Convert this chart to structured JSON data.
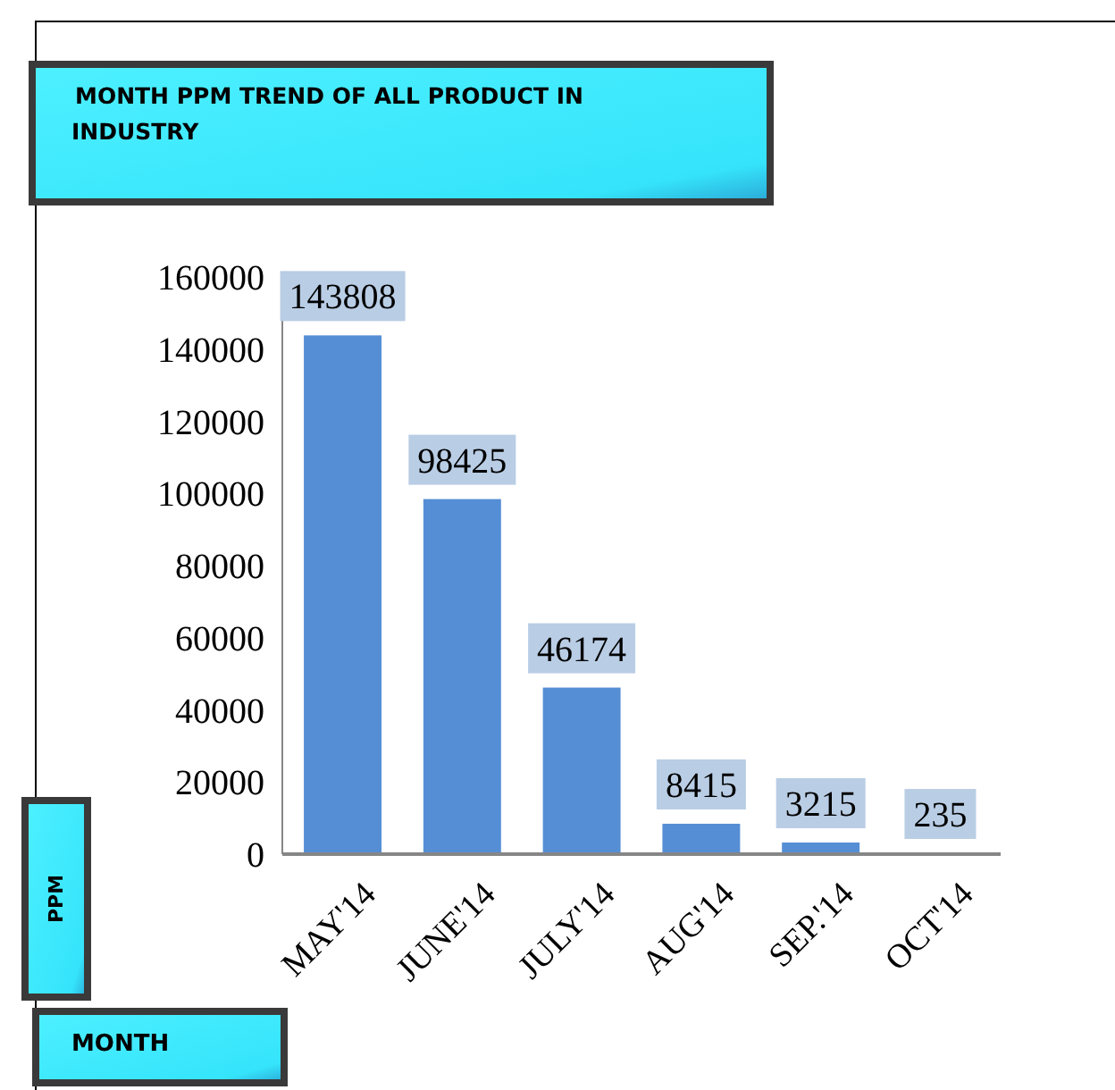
{
  "chart_data": {
    "type": "bar",
    "title": "MONTH PPM TREND OF ALL PRODUCT IN INDUSTRY",
    "xlabel": "MONTH",
    "ylabel": "PPM",
    "categories": [
      "MAY'14",
      "JUNE'14",
      "JULY'14",
      "AUG'14",
      "SEP.'14",
      "OCT'14"
    ],
    "values": [
      143808,
      98425,
      46174,
      8415,
      3215,
      235
    ],
    "color": "#558ed5",
    "ylim": [
      0,
      160000
    ],
    "yticks": [
      0,
      20000,
      40000,
      60000,
      80000,
      100000,
      120000,
      140000,
      160000
    ],
    "data_labels": true
  }
}
